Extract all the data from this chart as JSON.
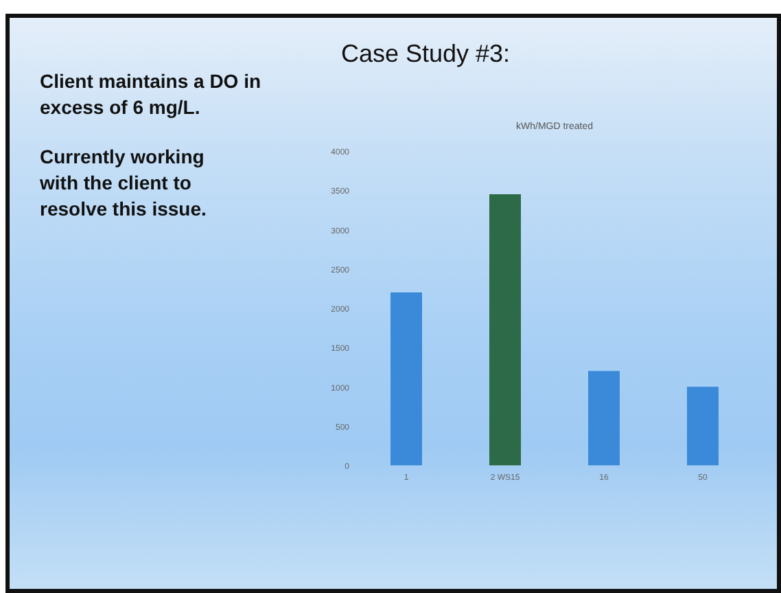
{
  "chart_data": {
    "type": "bar",
    "title": "Case Study #3:",
    "subtitle": "kWh/MGD treated",
    "categories": [
      "1",
      "2 WS15",
      "16",
      "50"
    ],
    "values": [
      2200,
      3450,
      1200,
      1000
    ],
    "colors": [
      "#3b8ad9",
      "#2d6a47",
      "#3b8ad9",
      "#3b8ad9"
    ],
    "ylim": [
      0,
      4000
    ],
    "yticks": [
      0,
      500,
      1000,
      1500,
      2000,
      2500,
      3000,
      3500,
      4000
    ],
    "grid": false,
    "legend": false,
    "annotations": [
      "Client maintains a DO in excess of 6 mg/L.",
      "Currently working with the client to resolve this issue."
    ]
  }
}
